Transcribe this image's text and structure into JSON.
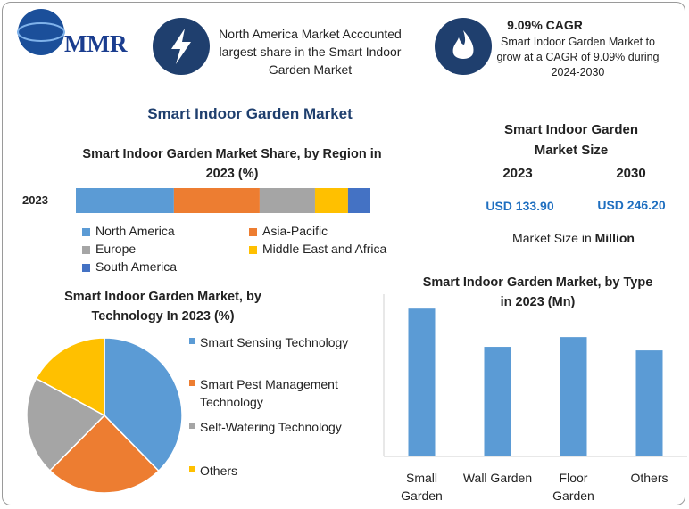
{
  "header": {
    "logo": "MMR",
    "info1": "North America Market Accounted largest share in the Smart Indoor Garden Market",
    "info2_title": "9.09% CAGR",
    "info2_text": "Smart Indoor Garden Market to grow at a CAGR of 9.09% during 2024-2030"
  },
  "title": "Smart Indoor Garden Market",
  "market_size": {
    "title": "Smart Indoor Garden Market Size",
    "years": [
      "2023",
      "2030"
    ],
    "values": [
      "USD 133.90",
      "USD 246.20"
    ],
    "note": "Market Size in",
    "note_unit": "Million"
  },
  "chart_data": [
    {
      "type": "stacked_barh",
      "title": "Smart Indoor Garden Market Share, by Region in 2023 (%)",
      "categories": [
        "2023"
      ],
      "xlim": [
        0,
        100
      ],
      "series": [
        {
          "name": "North America",
          "color": "#5b9bd5",
          "values": [
            33.3
          ]
        },
        {
          "name": "Asia-Pacific",
          "color": "#ed7d31",
          "values": [
            29.1
          ]
        },
        {
          "name": "Europe",
          "color": "#a5a5a5",
          "values": [
            18.8
          ]
        },
        {
          "name": "Middle East and Africa",
          "color": "#ffc000",
          "values": [
            11.2
          ]
        },
        {
          "name": "South America",
          "color": "#4472c4",
          "values": [
            7.6
          ]
        }
      ]
    },
    {
      "type": "pie",
      "title": "Smart Indoor Garden Market, by Technology In 2023 (%)",
      "categories": [
        "Smart Sensing Technology",
        "Smart Pest Management Technology",
        "Self-Watering Technology",
        "Others"
      ],
      "values": [
        37.7,
        24.7,
        20.5,
        17.1
      ],
      "colors": [
        "#5b9bd5",
        "#ed7d31",
        "#a5a5a5",
        "#ffc000"
      ]
    },
    {
      "type": "bar",
      "title": "Smart Indoor Garden Market, by Type in 2023 (Mn)",
      "categories": [
        "Small Garden",
        "Wall Garden",
        "Floor Garden",
        "Others"
      ],
      "values": [
        41.0,
        30.4,
        33.1,
        29.4
      ],
      "color": "#5b9bd5",
      "ylim": [
        0,
        45
      ]
    }
  ]
}
